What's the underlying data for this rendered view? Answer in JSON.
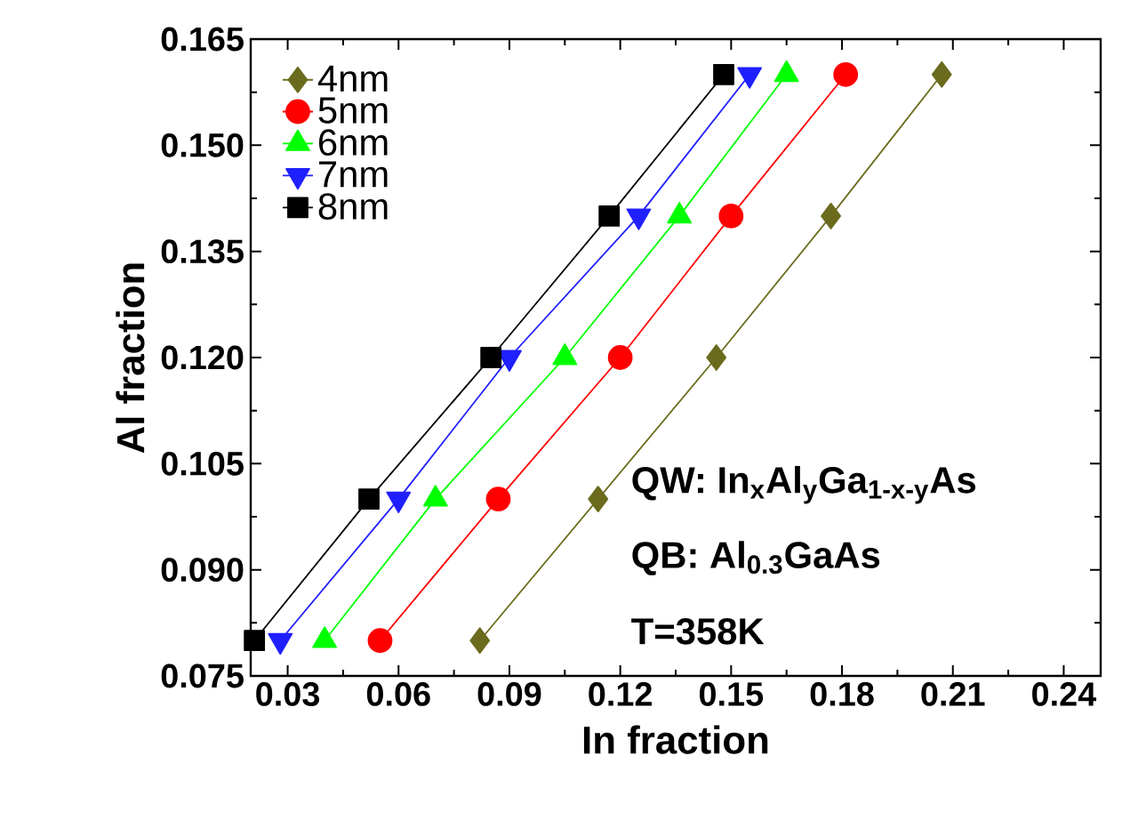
{
  "chart_data": {
    "type": "line",
    "xlabel": "In fraction",
    "ylabel": "Al fraction",
    "xlim": [
      0.02,
      0.25
    ],
    "ylim": [
      0.075,
      0.165
    ],
    "xticks": [
      0.03,
      0.06,
      0.09,
      0.12,
      0.15,
      0.18,
      0.21,
      0.24
    ],
    "yticks": [
      0.075,
      {
        "value": 0.09,
        "label": "0.090"
      },
      0.105,
      {
        "value": 0.12,
        "label": "0.120"
      },
      0.135,
      {
        "value": 0.15,
        "label": "0.150"
      },
      0.165
    ],
    "legend": "top left",
    "grid": false,
    "line_style": "solid",
    "annotations": [
      "QW: In$_{x}$Al$_{y}$Ga$_{1-x-y}$As",
      "QB: Al$_{0.3}$GaAs",
      "T=358K"
    ],
    "series": [
      {
        "name": "4nm",
        "color": "#6b6b1e",
        "marker": "diamond",
        "x": [
          0.082,
          0.114,
          0.146,
          0.177,
          0.207
        ],
        "values": [
          0.08,
          0.1,
          0.12,
          0.14,
          0.16
        ]
      },
      {
        "name": "5nm",
        "color": "#ff0000",
        "marker": "circle",
        "x": [
          0.055,
          0.087,
          0.12,
          0.15,
          0.181
        ],
        "values": [
          0.08,
          0.1,
          0.12,
          0.14,
          0.16
        ]
      },
      {
        "name": "6nm",
        "color": "#00ff00",
        "marker": "triangle",
        "x": [
          0.04,
          0.07,
          0.105,
          0.136,
          0.165
        ],
        "values": [
          0.08,
          0.1,
          0.12,
          0.14,
          0.16
        ]
      },
      {
        "name": "7nm",
        "color": "#2020ff",
        "marker": "triangle_down",
        "x": [
          0.028,
          0.06,
          0.09,
          0.125,
          0.155
        ],
        "values": [
          0.08,
          0.1,
          0.12,
          0.14,
          0.16
        ]
      },
      {
        "name": "8nm",
        "color": "#000000",
        "marker": "square",
        "x": [
          0.021,
          0.052,
          0.085,
          0.117,
          0.148
        ],
        "values": [
          0.08,
          0.1,
          0.12,
          0.14,
          0.16
        ]
      }
    ]
  }
}
